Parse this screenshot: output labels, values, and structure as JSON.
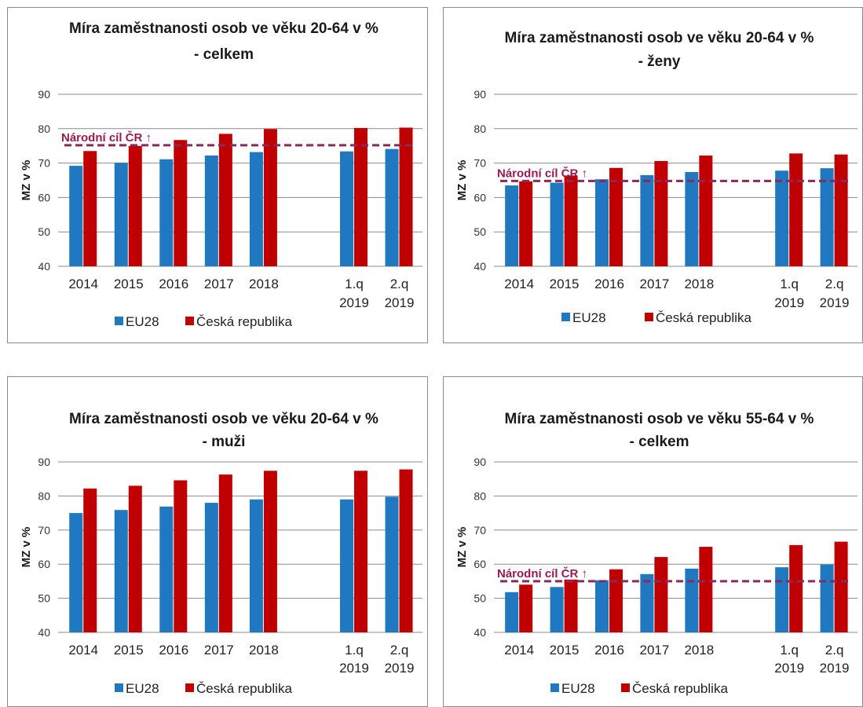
{
  "colors": {
    "eu": "#1f78c0",
    "cz": "#c00000",
    "target": "#8b2a5a",
    "grid": "#8c8c8c"
  },
  "charts": [
    {
      "title_lines": [
        "Míra zaměstnanosti osob ve věku 20-64 v %",
        "- celkem"
      ],
      "ylabel": "MZ v %",
      "target_label": "Národní cíl ČR ↑",
      "legend": [
        "EU28",
        "Česká republika"
      ]
    },
    {
      "title_lines": [
        "Míra zaměstnanosti osob ve věku 20-64 v %",
        "- ženy"
      ],
      "ylabel": "MZ v %",
      "target_label": "Národní cíl ČR ↑",
      "legend": [
        "EU28",
        "Česká republika"
      ]
    },
    {
      "title_lines": [
        "Míra zaměstnanosti osob ve věku 20-64 v %",
        "- muži"
      ],
      "ylabel": "MZ v %",
      "target_label": "",
      "legend": [
        "EU28",
        "Česká republika"
      ]
    },
    {
      "title_lines": [
        "Míra zaměstnanosti osob ve věku 55-64 v %",
        "- celkem"
      ],
      "ylabel": "MZ v %",
      "target_label": "Národní cíl ČR ↑",
      "legend": [
        "EU28",
        "Česká republika"
      ]
    }
  ],
  "chart_data": [
    {
      "type": "bar",
      "title": "Míra zaměstnanosti osob ve věku 20-64 v % - celkem",
      "categories": [
        "2014",
        "2015",
        "2016",
        "2017",
        "2018",
        "1.q 2019",
        "2.q 2019"
      ],
      "series": [
        {
          "name": "EU28",
          "values": [
            69.2,
            70.1,
            71.1,
            72.2,
            73.2,
            73.4,
            74.1
          ]
        },
        {
          "name": "Česká republika",
          "values": [
            73.5,
            75.0,
            76.7,
            78.5,
            79.9,
            80.2,
            80.3
          ]
        }
      ],
      "target": 75.2,
      "ylabel": "MZ v %",
      "ylim": [
        40,
        90
      ],
      "yticks": [
        40,
        50,
        60,
        70,
        80,
        90
      ],
      "grid": true,
      "legend_position": "bottom"
    },
    {
      "type": "bar",
      "title": "Míra zaměstnanosti osob ve věku 20-64 v % - ženy",
      "categories": [
        "2014",
        "2015",
        "2016",
        "2017",
        "2018",
        "1.q 2019",
        "2.q 2019"
      ],
      "series": [
        {
          "name": "EU28",
          "values": [
            63.5,
            64.3,
            65.3,
            66.5,
            67.4,
            67.8,
            68.5
          ]
        },
        {
          "name": "Česká republika",
          "values": [
            64.7,
            66.4,
            68.6,
            70.6,
            72.2,
            72.8,
            72.5
          ]
        }
      ],
      "target": 64.8,
      "ylabel": "MZ v %",
      "ylim": [
        40,
        90
      ],
      "yticks": [
        40,
        50,
        60,
        70,
        80,
        90
      ],
      "grid": true,
      "legend_position": "bottom"
    },
    {
      "type": "bar",
      "title": "Míra zaměstnanosti osob ve věku 20-64 v % - muži",
      "categories": [
        "2014",
        "2015",
        "2016",
        "2017",
        "2018",
        "1.q 2019",
        "2.q 2019"
      ],
      "series": [
        {
          "name": "EU28",
          "values": [
            75.0,
            75.9,
            76.9,
            78.0,
            79.0,
            79.0,
            79.8
          ]
        },
        {
          "name": "Česká republika",
          "values": [
            82.2,
            83.0,
            84.6,
            86.3,
            87.4,
            87.4,
            87.8
          ]
        }
      ],
      "ylabel": "MZ v %",
      "ylim": [
        40,
        90
      ],
      "yticks": [
        40,
        50,
        60,
        70,
        80,
        90
      ],
      "grid": true,
      "legend_position": "bottom"
    },
    {
      "type": "bar",
      "title": "Míra zaměstnanosti osob ve věku 55-64 v % - celkem",
      "categories": [
        "2014",
        "2015",
        "2016",
        "2017",
        "2018",
        "1.q 2019",
        "2.q 2019"
      ],
      "series": [
        {
          "name": "EU28",
          "values": [
            51.8,
            53.3,
            55.3,
            57.1,
            58.7,
            59.1,
            59.9
          ]
        },
        {
          "name": "Česká republika",
          "values": [
            54.0,
            55.5,
            58.5,
            62.1,
            65.1,
            65.6,
            66.6
          ]
        }
      ],
      "target": 55.0,
      "ylabel": "MZ v %",
      "ylim": [
        40,
        90
      ],
      "yticks": [
        40,
        50,
        60,
        70,
        80,
        90
      ],
      "grid": true,
      "legend_position": "bottom"
    }
  ]
}
